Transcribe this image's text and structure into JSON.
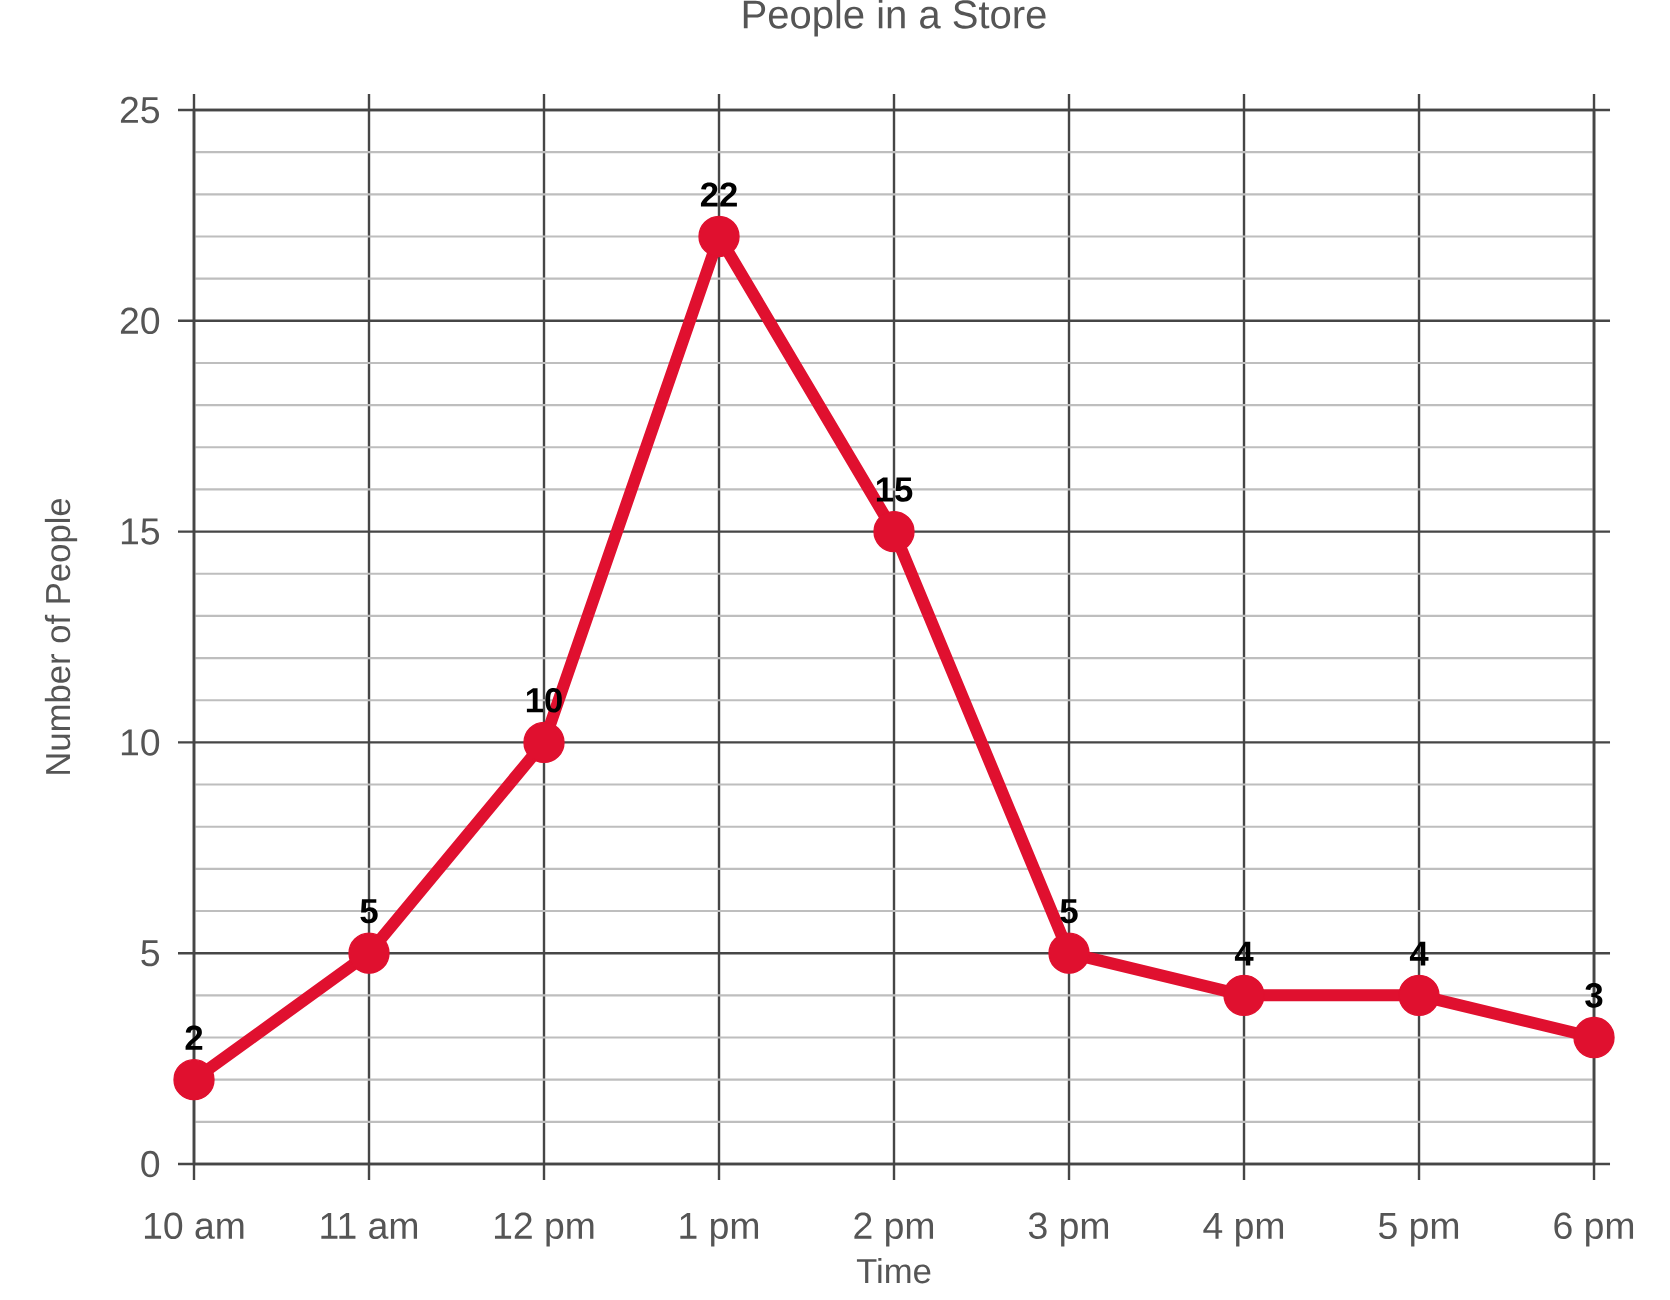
{
  "chart_data": {
    "type": "line",
    "title": "People in a Store",
    "xlabel": "Time",
    "ylabel": "Number of People",
    "categories": [
      "10 am",
      "11 am",
      "12 pm",
      "1 pm",
      "2 pm",
      "3 pm",
      "4 pm",
      "5 pm",
      "6 pm"
    ],
    "values": [
      2,
      5,
      10,
      22,
      15,
      5,
      4,
      4,
      3
    ],
    "color": "#e0102f",
    "ylim": [
      0,
      25
    ],
    "yticks": [
      0,
      5,
      10,
      15,
      20,
      25
    ],
    "grid": true,
    "marker": "circle",
    "data_labels": true
  }
}
